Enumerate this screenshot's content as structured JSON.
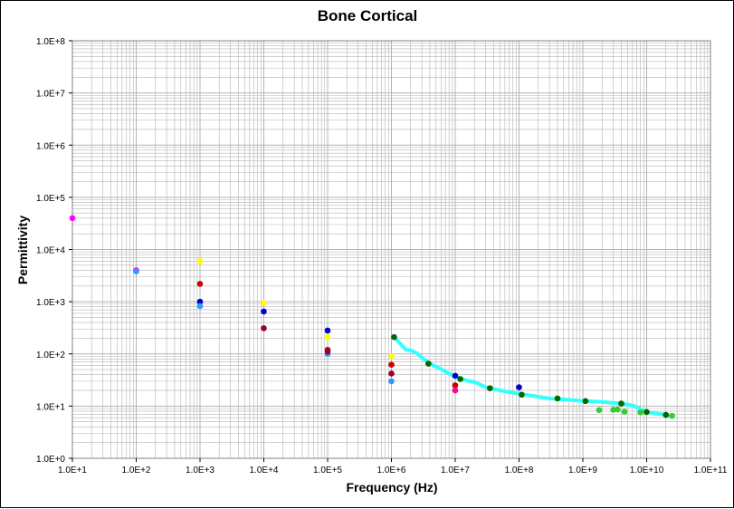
{
  "chart_data": {
    "type": "scatter",
    "title": "Bone Cortical",
    "xlabel": "Frequency (Hz)",
    "ylabel": "Permittivity",
    "x_scale": "log",
    "y_scale": "log",
    "xlim": [
      10,
      100000000000
    ],
    "ylim": [
      1,
      100000000
    ],
    "x_ticks": [
      10,
      100,
      1000,
      10000,
      100000,
      1000000,
      10000000,
      100000000,
      1000000000,
      10000000000,
      100000000000
    ],
    "x_tick_labels": [
      "1.0E+1",
      "1.0E+2",
      "1.0E+3",
      "1.0E+4",
      "1.0E+5",
      "1.0E+6",
      "1.0E+7",
      "1.0E+8",
      "1.0E+9",
      "1.0E+10",
      "1.0E+11"
    ],
    "y_ticks": [
      1,
      10,
      100,
      1000,
      10000,
      100000,
      1000000,
      10000000,
      100000000
    ],
    "y_tick_labels": [
      "1.0E+0",
      "1.0E+1",
      "1.0E+2",
      "1.0E+3",
      "1.0E+4",
      "1.0E+5",
      "1.0E+6",
      "1.0E+7",
      "1.0E+8"
    ],
    "grid": true,
    "plot_background": "#ffffff",
    "grid_color": "#b4b4b4",
    "series": [
      {
        "color": "#ff00ff",
        "values": [
          [
            10,
            40000
          ],
          [
            100,
            4000
          ]
        ]
      },
      {
        "color": "#ffff00",
        "values": [
          [
            1000,
            6000
          ],
          [
            10000,
            950
          ],
          [
            100000,
            210
          ],
          [
            1000000,
            90
          ]
        ]
      },
      {
        "color": "#cc0000",
        "values": [
          [
            1000,
            2200
          ],
          [
            100000,
            120
          ],
          [
            1000000,
            62
          ],
          [
            10000000,
            25
          ]
        ]
      },
      {
        "color": "#0000cc",
        "values": [
          [
            1000,
            1000
          ],
          [
            10000,
            650
          ],
          [
            100000,
            280
          ],
          [
            10000000,
            38
          ],
          [
            100000000,
            23
          ]
        ]
      },
      {
        "color": "#3399ff",
        "values": [
          [
            100,
            3800
          ],
          [
            1000,
            820
          ],
          [
            100000,
            100
          ],
          [
            1000000,
            30
          ]
        ]
      },
      {
        "color": "#990033",
        "values": [
          [
            10000,
            310
          ],
          [
            100000,
            110
          ],
          [
            1000000,
            42
          ]
        ]
      },
      {
        "color": "#ff0099",
        "values": [
          [
            10000000,
            20
          ]
        ]
      },
      {
        "color": "#33cc33",
        "values": [
          [
            1800000000,
            8.4
          ],
          [
            3000000000,
            8.5
          ],
          [
            3500000000,
            8.6
          ],
          [
            4500000000,
            7.8
          ],
          [
            8000000000,
            7.6
          ],
          [
            25000000000,
            6.5
          ]
        ]
      },
      {
        "color": "#006600",
        "values": [
          [
            1100000000,
            12.5
          ],
          [
            4000000000,
            11.2
          ],
          [
            10000000000,
            7.7
          ],
          [
            20000000000,
            6.8
          ],
          [
            1100000,
            210
          ],
          [
            3800000,
            65
          ],
          [
            12000000,
            33
          ],
          [
            35000000,
            22
          ],
          [
            110000000,
            16.5
          ],
          [
            400000000,
            14
          ]
        ]
      }
    ],
    "curve": {
      "color": "#33ffff",
      "values": [
        [
          1100000,
          210
        ],
        [
          1300000,
          170
        ],
        [
          1500000,
          140
        ],
        [
          1700000,
          120
        ],
        [
          2000000,
          118
        ],
        [
          2500000,
          103
        ],
        [
          3000000,
          85
        ],
        [
          4000000,
          65
        ],
        [
          5000000,
          57
        ],
        [
          6000000,
          51
        ],
        [
          8000000,
          42
        ],
        [
          10000000,
          37
        ],
        [
          15000000,
          31
        ],
        [
          20000000,
          29
        ],
        [
          30000000,
          23
        ],
        [
          50000000,
          20
        ],
        [
          80000000,
          18
        ],
        [
          150000000,
          16
        ],
        [
          300000000,
          14
        ],
        [
          600000000,
          13.2
        ],
        [
          1000000000,
          12.5
        ],
        [
          2000000000,
          12
        ],
        [
          4000000000,
          11.2
        ],
        [
          6000000000,
          10.3
        ],
        [
          8000000000,
          8.8
        ],
        [
          10000000000,
          7.7
        ],
        [
          15000000000,
          7.1
        ],
        [
          20000000000,
          6.8
        ],
        [
          25000000000,
          6.5
        ]
      ]
    }
  }
}
